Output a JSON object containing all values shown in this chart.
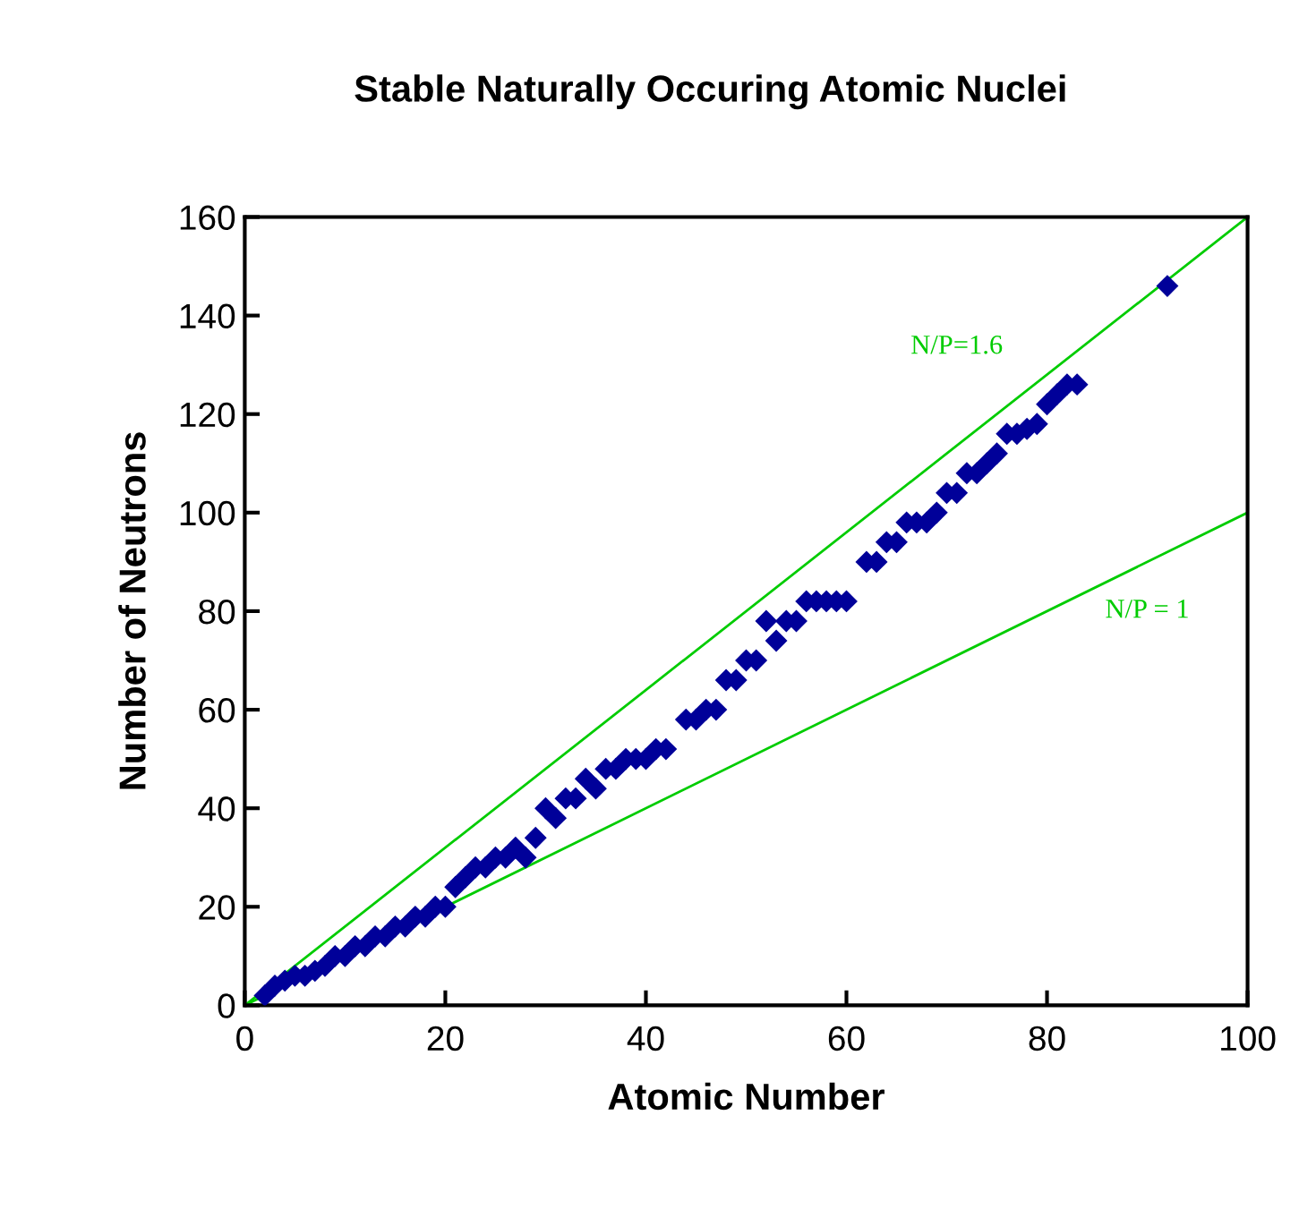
{
  "chart_data": {
    "type": "scatter",
    "title": "Stable Naturally Occuring Atomic Nuclei",
    "xlabel": "Atomic Number",
    "ylabel": "Number of Neutrons",
    "xlim": [
      0,
      100
    ],
    "ylim": [
      0,
      160
    ],
    "xticks": [
      0,
      20,
      40,
      60,
      80,
      100
    ],
    "yticks": [
      0,
      20,
      40,
      60,
      80,
      100,
      120,
      140,
      160
    ],
    "grid": false,
    "legend": false,
    "marker": "diamond",
    "series": [
      {
        "color": "#000099",
        "x": [
          2,
          3,
          4,
          5,
          6,
          7,
          8,
          9,
          10,
          11,
          12,
          13,
          14,
          15,
          16,
          17,
          18,
          19,
          20,
          21,
          22,
          23,
          24,
          25,
          26,
          27,
          28,
          29,
          30,
          31,
          32,
          33,
          34,
          35,
          36,
          37,
          38,
          39,
          40,
          41,
          42,
          44,
          45,
          46,
          47,
          48,
          49,
          50,
          51,
          52,
          53,
          54,
          55,
          56,
          57,
          58,
          59,
          60,
          62,
          63,
          64,
          65,
          66,
          67,
          68,
          69,
          70,
          71,
          72,
          73,
          74,
          75,
          76,
          77,
          78,
          79,
          80,
          81,
          82,
          83,
          92
        ],
        "values": [
          2,
          4,
          5,
          6,
          6,
          7,
          8,
          10,
          10,
          12,
          12,
          14,
          14,
          16,
          16,
          18,
          18,
          20,
          20,
          24,
          26,
          28,
          28,
          30,
          30,
          32,
          30,
          34,
          40,
          38,
          42,
          42,
          46,
          44,
          48,
          48,
          50,
          50,
          50,
          52,
          52,
          58,
          58,
          60,
          60,
          66,
          66,
          70,
          70,
          78,
          74,
          78,
          78,
          82,
          82,
          82,
          82,
          82,
          90,
          90,
          94,
          94,
          98,
          98,
          98,
          100,
          104,
          104,
          108,
          108,
          110,
          112,
          116,
          116,
          117,
          118,
          122,
          124,
          126,
          126,
          146
        ]
      },
      {
        "type": "line",
        "marker": "none",
        "name": "N/P=1.6",
        "color": "#00cc00",
        "x": [
          0,
          100
        ],
        "values": [
          0,
          160
        ]
      },
      {
        "type": "line",
        "marker": "none",
        "name": "N/P = 1",
        "color": "#00cc00",
        "x": [
          0,
          100
        ],
        "values": [
          0,
          100
        ]
      }
    ]
  }
}
